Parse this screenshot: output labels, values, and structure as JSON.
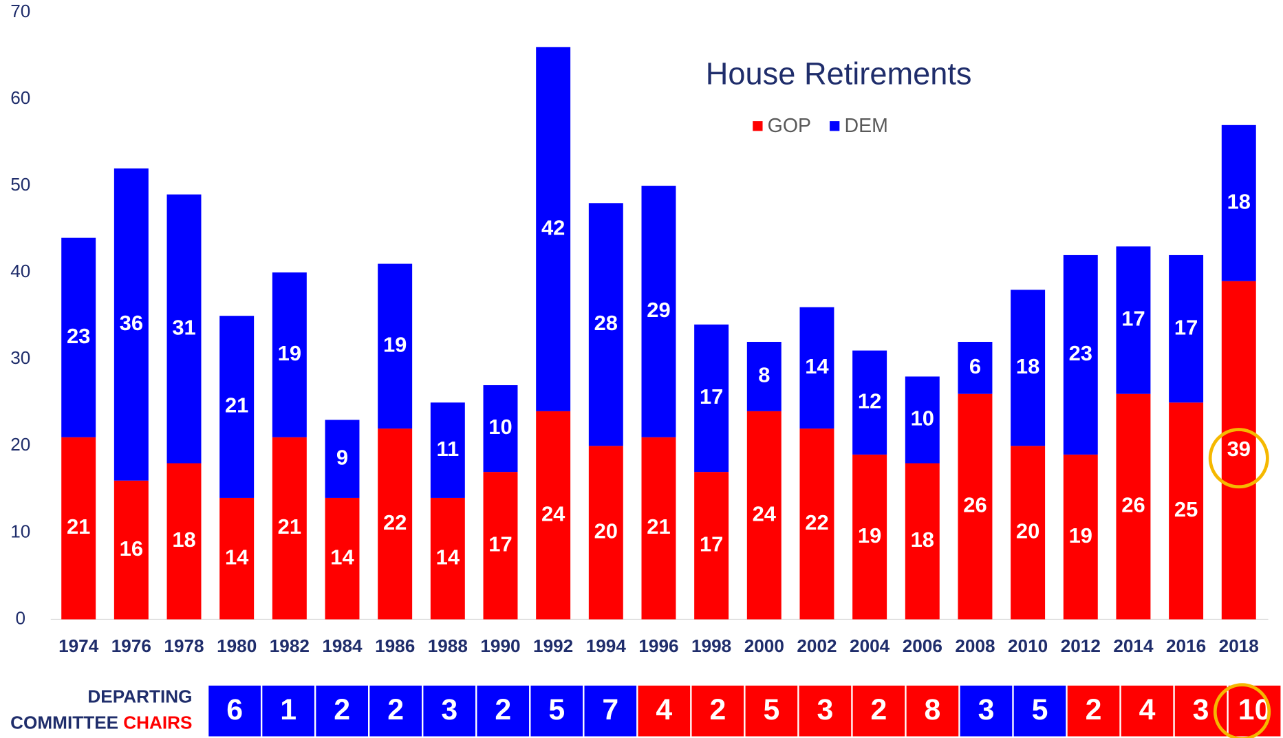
{
  "chart_data": {
    "type": "stacked_bar",
    "title": "House Retirements",
    "categories": [
      "1974",
      "1976",
      "1978",
      "1980",
      "1982",
      "1984",
      "1986",
      "1988",
      "1990",
      "1992",
      "1994",
      "1996",
      "1998",
      "2000",
      "2002",
      "2004",
      "2006",
      "2008",
      "2010",
      "2012",
      "2014",
      "2016",
      "2018"
    ],
    "series": [
      {
        "name": "GOP",
        "color": "#ff0000",
        "values": [
          21,
          16,
          18,
          14,
          21,
          14,
          22,
          14,
          17,
          24,
          20,
          21,
          17,
          24,
          22,
          19,
          18,
          26,
          20,
          19,
          26,
          25,
          39
        ]
      },
      {
        "name": "DEM",
        "color": "#0000ff",
        "values": [
          23,
          36,
          31,
          21,
          19,
          9,
          19,
          11,
          10,
          42,
          28,
          29,
          17,
          8,
          14,
          12,
          10,
          6,
          18,
          23,
          17,
          17,
          18
        ]
      }
    ],
    "ylim": [
      0,
      70
    ],
    "yticks": [
      0,
      10,
      20,
      30,
      40,
      50,
      60,
      70
    ],
    "grid": false,
    "legend": "top",
    "chairs": {
      "label": [
        "DEPARTING",
        "COMMITTEE",
        "CHAIRS"
      ],
      "values": [
        6,
        1,
        2,
        2,
        3,
        2,
        5,
        7,
        4,
        2,
        5,
        3,
        2,
        8,
        3,
        5,
        2,
        4,
        3,
        10
      ],
      "colors": [
        "#0000ff",
        "#0000ff",
        "#0000ff",
        "#0000ff",
        "#0000ff",
        "#0000ff",
        "#0000ff",
        "#0000ff",
        "#ff0000",
        "#ff0000",
        "#ff0000",
        "#ff0000",
        "#ff0000",
        "#ff0000",
        "#0000ff",
        "#0000ff",
        "#ff0000",
        "#ff0000",
        "#ff0000",
        "#ff0000"
      ]
    }
  }
}
